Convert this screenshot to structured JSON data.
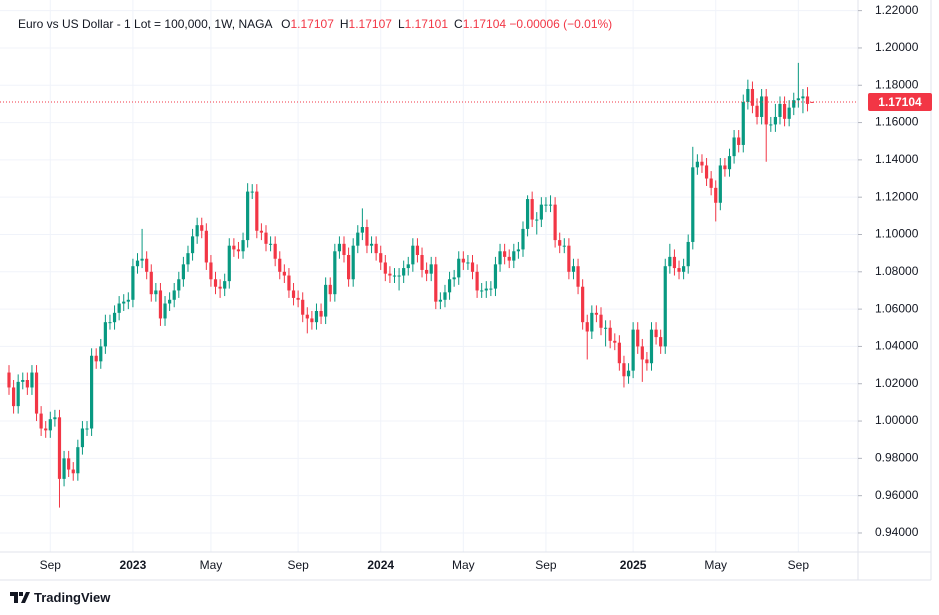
{
  "chart_data": {
    "type": "candlestick",
    "title": "Euro vs US Dollar - 1 Lot = 100,000, 1W, NAGA",
    "ohlc_legend": [
      {
        "label": "O",
        "value": "1.17107"
      },
      {
        "label": "H",
        "value": "1.17107"
      },
      {
        "label": "L",
        "value": "1.17101"
      },
      {
        "label": "C",
        "value": "1.17104"
      }
    ],
    "change": "−0.00006 (−0.01%)",
    "up_color": "#089981",
    "down_color": "#f23645",
    "grid": true,
    "xlim": [
      0,
      185
    ],
    "xticks": [
      {
        "value": 9,
        "label": "Sep"
      },
      {
        "value": 27,
        "label": "2023"
      },
      {
        "value": 44,
        "label": "May"
      },
      {
        "value": 63,
        "label": "Sep"
      },
      {
        "value": 81,
        "label": "2024"
      },
      {
        "value": 99,
        "label": "May"
      },
      {
        "value": 117,
        "label": "Sep"
      },
      {
        "value": 136,
        "label": "2025"
      },
      {
        "value": 154,
        "label": "May"
      },
      {
        "value": 172,
        "label": "Sep"
      }
    ],
    "ylim": [
      0.9298,
      1.2257
    ],
    "yticks": [
      {
        "value": 0.94,
        "label": "0.94000"
      },
      {
        "value": 0.96,
        "label": "0.96000"
      },
      {
        "value": 0.98,
        "label": "0.98000"
      },
      {
        "value": 1.0,
        "label": "1.00000"
      },
      {
        "value": 1.02,
        "label": "1.02000"
      },
      {
        "value": 1.04,
        "label": "1.04000"
      },
      {
        "value": 1.06,
        "label": "1.06000"
      },
      {
        "value": 1.08,
        "label": "1.08000"
      },
      {
        "value": 1.1,
        "label": "1.10000"
      },
      {
        "value": 1.12,
        "label": "1.12000"
      },
      {
        "value": 1.14,
        "label": "1.14000"
      },
      {
        "value": 1.16,
        "label": "1.16000"
      },
      {
        "value": 1.18,
        "label": "1.18000"
      },
      {
        "value": 1.2,
        "label": "1.20000"
      },
      {
        "value": 1.22,
        "label": "1.22000"
      }
    ],
    "open": [
      1.026,
      1.018,
      1.008,
      1.021,
      1.022,
      1.018,
      1.026,
      1.004,
      0.996,
      0.995,
      1.001,
      1.002,
      0.969,
      0.98,
      0.974,
      0.972,
      0.986,
      0.996,
      0.996,
      1.035,
      1.032,
      1.04,
      1.053,
      1.053,
      1.058,
      1.063,
      1.064,
      1.065,
      1.083,
      1.086,
      1.087,
      1.08,
      1.068,
      1.07,
      1.055,
      1.063,
      1.065,
      1.07,
      1.076,
      1.084,
      1.09,
      1.099,
      1.105,
      1.102,
      1.085,
      1.076,
      1.072,
      1.071,
      1.075,
      1.094,
      1.092,
      1.091,
      1.097,
      1.123,
      1.123,
      1.102,
      1.101,
      1.095,
      1.095,
      1.087,
      1.08,
      1.078,
      1.07,
      1.066,
      1.065,
      1.057,
      1.055,
      1.053,
      1.059,
      1.056,
      1.073,
      1.068,
      1.091,
      1.095,
      1.089,
      1.076,
      1.094,
      1.101,
      1.104,
      1.094,
      1.095,
      1.09,
      1.085,
      1.079,
      1.078,
      1.078,
      1.078,
      1.082,
      1.084,
      1.094,
      1.089,
      1.081,
      1.079,
      1.084,
      1.064,
      1.065,
      1.069,
      1.076,
      1.077,
      1.087,
      1.085,
      1.085,
      1.08,
      1.07,
      1.07,
      1.071,
      1.071,
      1.084,
      1.091,
      1.088,
      1.086,
      1.091,
      1.092,
      1.103,
      1.119,
      1.108,
      1.108,
      1.116,
      1.116,
      1.116,
      1.097,
      1.094,
      1.094,
      1.08,
      1.083,
      1.072,
      1.053,
      1.048,
      1.058,
      1.057,
      1.05,
      1.05,
      1.043,
      1.042,
      1.031,
      1.024,
      1.027,
      1.049,
      1.04,
      1.033,
      1.031,
      1.049,
      1.045,
      1.04,
      1.083,
      1.088,
      1.082,
      1.08,
      1.083,
      1.096,
      1.136,
      1.139,
      1.137,
      1.13,
      1.125,
      1.117,
      1.137,
      1.135,
      1.142,
      1.152,
      1.148,
      1.171,
      1.178,
      1.169,
      1.163,
      1.174,
      1.159,
      1.159,
      1.163,
      1.17,
      1.162,
      1.168,
      1.172,
      1.173,
      1.174,
      1.17107
    ],
    "high": [
      1.03,
      1.022,
      1.025,
      1.026,
      1.026,
      1.03,
      1.03,
      1.008,
      1.0,
      1.005,
      1.006,
      1.006,
      0.984,
      0.984,
      0.978,
      0.99,
      1.0,
      1.0,
      1.039,
      1.039,
      1.044,
      1.057,
      1.057,
      1.062,
      1.067,
      1.068,
      1.069,
      1.087,
      1.09,
      1.103,
      1.091,
      1.084,
      1.074,
      1.074,
      1.067,
      1.069,
      1.074,
      1.08,
      1.088,
      1.094,
      1.103,
      1.109,
      1.109,
      1.106,
      1.089,
      1.08,
      1.076,
      1.079,
      1.098,
      1.098,
      1.096,
      1.101,
      1.1275,
      1.127,
      1.127,
      1.106,
      1.105,
      1.099,
      1.099,
      1.091,
      1.084,
      1.082,
      1.074,
      1.07,
      1.069,
      1.061,
      1.059,
      1.063,
      1.063,
      1.077,
      1.077,
      1.095,
      1.099,
      1.099,
      1.093,
      1.098,
      1.105,
      1.114,
      1.108,
      1.099,
      1.099,
      1.094,
      1.089,
      1.083,
      1.082,
      1.082,
      1.086,
      1.088,
      1.098,
      1.098,
      1.093,
      1.085,
      1.088,
      1.088,
      1.069,
      1.073,
      1.08,
      1.081,
      1.091,
      1.091,
      1.089,
      1.089,
      1.084,
      1.074,
      1.075,
      1.075,
      1.088,
      1.095,
      1.095,
      1.092,
      1.095,
      1.096,
      1.107,
      1.121,
      1.123,
      1.112,
      1.12,
      1.12,
      1.121,
      1.12,
      1.101,
      1.098,
      1.098,
      1.087,
      1.087,
      1.076,
      1.057,
      1.062,
      1.062,
      1.061,
      1.054,
      1.054,
      1.047,
      1.046,
      1.035,
      1.031,
      1.053,
      1.053,
      1.044,
      1.037,
      1.053,
      1.053,
      1.049,
      1.087,
      1.095,
      1.092,
      1.086,
      1.087,
      1.1,
      1.147,
      1.143,
      1.143,
      1.141,
      1.134,
      1.129,
      1.141,
      1.141,
      1.146,
      1.156,
      1.156,
      1.175,
      1.183,
      1.182,
      1.173,
      1.178,
      1.178,
      1.163,
      1.17,
      1.174,
      1.174,
      1.172,
      1.176,
      1.192,
      1.178,
      1.179,
      1.17107
    ],
    "low": [
      1.014,
      1.004,
      1.004,
      1.017,
      1.014,
      1.014,
      1.0,
      0.992,
      0.991,
      0.991,
      0.997,
      0.9536,
      0.965,
      0.97,
      0.968,
      0.968,
      0.982,
      0.992,
      0.992,
      1.028,
      1.028,
      1.036,
      1.049,
      1.049,
      1.054,
      1.059,
      1.06,
      1.061,
      1.079,
      1.082,
      1.076,
      1.064,
      1.064,
      1.051,
      1.051,
      1.059,
      1.061,
      1.066,
      1.072,
      1.08,
      1.086,
      1.095,
      1.098,
      1.081,
      1.072,
      1.068,
      1.066,
      1.067,
      1.071,
      1.088,
      1.087,
      1.087,
      1.093,
      1.119,
      1.098,
      1.097,
      1.091,
      1.091,
      1.083,
      1.076,
      1.074,
      1.066,
      1.062,
      1.061,
      1.053,
      1.047,
      1.049,
      1.049,
      1.052,
      1.052,
      1.064,
      1.064,
      1.087,
      1.085,
      1.072,
      1.072,
      1.09,
      1.097,
      1.09,
      1.09,
      1.086,
      1.081,
      1.075,
      1.074,
      1.074,
      1.07,
      1.074,
      1.078,
      1.08,
      1.085,
      1.077,
      1.075,
      1.075,
      1.06,
      1.06,
      1.061,
      1.065,
      1.072,
      1.073,
      1.081,
      1.081,
      1.076,
      1.066,
      1.066,
      1.066,
      1.067,
      1.067,
      1.08,
      1.084,
      1.082,
      1.082,
      1.087,
      1.088,
      1.099,
      1.104,
      1.1,
      1.104,
      1.112,
      1.112,
      1.093,
      1.09,
      1.09,
      1.076,
      1.076,
      1.068,
      1.049,
      1.033,
      1.044,
      1.053,
      1.046,
      1.04,
      1.039,
      1.038,
      1.027,
      1.018,
      1.02,
      1.023,
      1.036,
      1.021,
      1.027,
      1.027,
      1.041,
      1.036,
      1.036,
      1.079,
      1.078,
      1.076,
      1.076,
      1.079,
      1.092,
      1.132,
      1.133,
      1.126,
      1.121,
      1.107,
      1.113,
      1.131,
      1.131,
      1.138,
      1.144,
      1.144,
      1.167,
      1.165,
      1.159,
      1.159,
      1.139,
      1.155,
      1.155,
      1.159,
      1.158,
      1.158,
      1.164,
      1.168,
      1.165,
      1.166,
      1.17101
    ],
    "close": [
      1.018,
      1.008,
      1.021,
      1.022,
      1.018,
      1.026,
      1.004,
      0.996,
      0.995,
      1.001,
      1.002,
      0.969,
      0.98,
      0.974,
      0.972,
      0.986,
      0.996,
      0.996,
      1.035,
      1.032,
      1.04,
      1.053,
      1.053,
      1.058,
      1.063,
      1.064,
      1.065,
      1.083,
      1.086,
      1.087,
      1.08,
      1.068,
      1.07,
      1.055,
      1.063,
      1.065,
      1.07,
      1.076,
      1.084,
      1.09,
      1.099,
      1.105,
      1.102,
      1.085,
      1.076,
      1.072,
      1.071,
      1.075,
      1.094,
      1.092,
      1.091,
      1.097,
      1.123,
      1.123,
      1.102,
      1.101,
      1.095,
      1.095,
      1.087,
      1.08,
      1.078,
      1.07,
      1.066,
      1.065,
      1.057,
      1.055,
      1.053,
      1.059,
      1.056,
      1.073,
      1.068,
      1.091,
      1.095,
      1.089,
      1.076,
      1.094,
      1.101,
      1.104,
      1.094,
      1.095,
      1.09,
      1.085,
      1.079,
      1.078,
      1.078,
      1.078,
      1.082,
      1.084,
      1.094,
      1.089,
      1.081,
      1.079,
      1.084,
      1.064,
      1.065,
      1.069,
      1.076,
      1.077,
      1.087,
      1.085,
      1.085,
      1.08,
      1.07,
      1.07,
      1.071,
      1.071,
      1.084,
      1.091,
      1.088,
      1.086,
      1.091,
      1.092,
      1.103,
      1.119,
      1.108,
      1.108,
      1.116,
      1.116,
      1.116,
      1.097,
      1.094,
      1.094,
      1.08,
      1.083,
      1.072,
      1.053,
      1.048,
      1.058,
      1.057,
      1.05,
      1.05,
      1.043,
      1.042,
      1.031,
      1.024,
      1.027,
      1.049,
      1.04,
      1.033,
      1.031,
      1.049,
      1.045,
      1.04,
      1.083,
      1.088,
      1.082,
      1.08,
      1.083,
      1.096,
      1.136,
      1.139,
      1.137,
      1.13,
      1.125,
      1.117,
      1.137,
      1.135,
      1.142,
      1.152,
      1.148,
      1.171,
      1.178,
      1.169,
      1.163,
      1.174,
      1.159,
      1.159,
      1.163,
      1.17,
      1.162,
      1.168,
      1.172,
      1.173,
      1.174,
      1.17,
      1.17104
    ]
  },
  "brand": "TradingView"
}
